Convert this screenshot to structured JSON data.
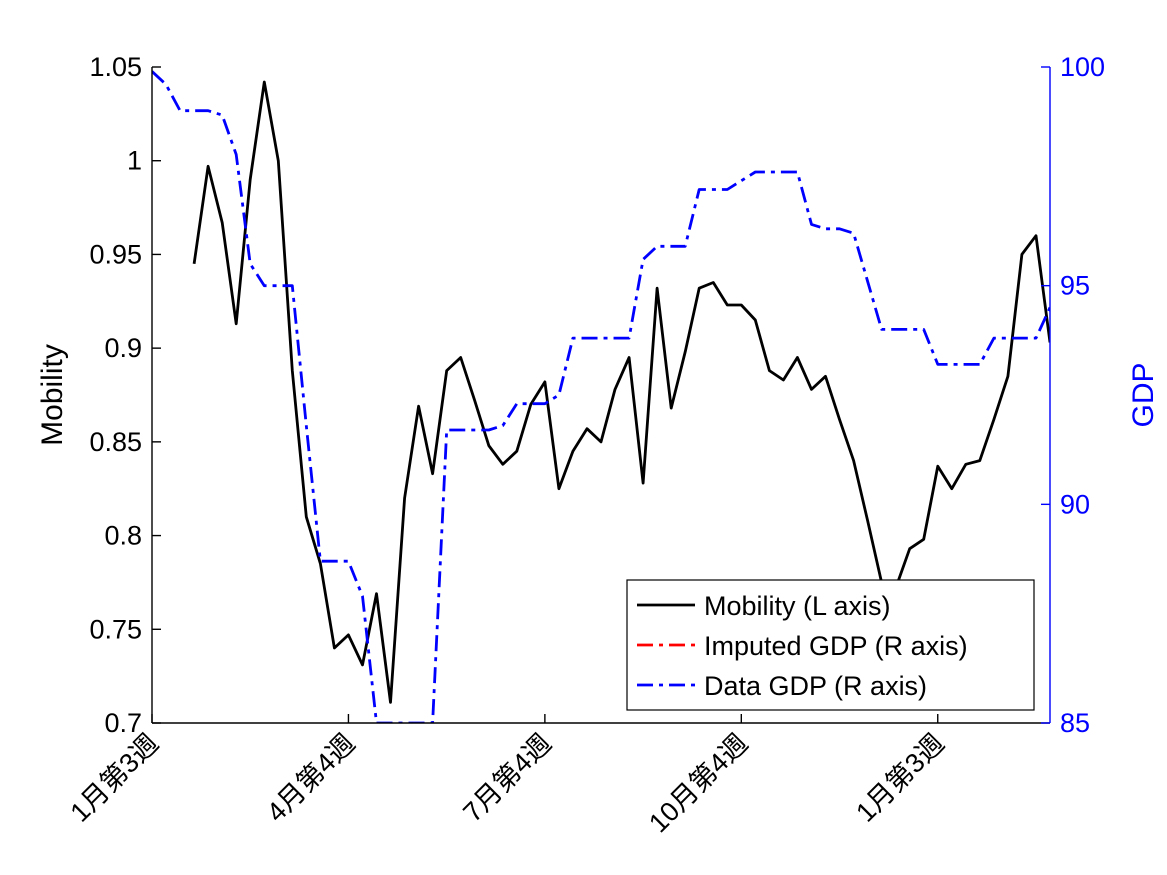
{
  "colors": {
    "mobility": "#000000",
    "imputed_gdp": "#ff0000",
    "data_gdp": "#0000ff",
    "left_axis": "#000000",
    "right_axis": "#0000ff"
  },
  "chart_data": {
    "type": "line",
    "x_tick_labels": [
      "1月第3週",
      "4月第4週",
      "7月第4週",
      "10月第4週",
      "1月第3週"
    ],
    "x_tick_index": [
      0,
      14,
      28,
      42,
      56
    ],
    "xlim": [
      0,
      64
    ],
    "left_axis": {
      "label": "Mobility",
      "ylim": [
        0.7,
        1.05
      ],
      "ticks": [
        0.7,
        0.75,
        0.8,
        0.85,
        0.9,
        0.95,
        1,
        1.05
      ],
      "tick_labels": [
        "0.7",
        "0.75",
        "0.8",
        "0.85",
        "0.9",
        "0.95",
        "1",
        "1.05"
      ]
    },
    "right_axis": {
      "label": "GDP",
      "ylim": [
        85,
        100
      ],
      "ticks": [
        85,
        90,
        95,
        100
      ],
      "tick_labels": [
        "85",
        "90",
        "95",
        "100"
      ]
    },
    "legend": {
      "position": "bottom-right",
      "entries": [
        "Mobility (L axis)",
        "Imputed GDP (R axis)",
        "Data GDP (R axis)"
      ]
    },
    "series": [
      {
        "name": "Mobility (L axis)",
        "axis": "left",
        "style": "solid",
        "x": [
          3,
          4,
          5,
          6,
          7,
          8,
          9,
          10,
          11,
          12,
          13,
          14,
          15,
          16,
          17,
          18,
          19,
          20,
          21,
          22,
          23,
          24,
          25,
          26,
          27,
          28,
          29,
          30,
          31,
          32,
          33,
          34,
          35,
          36,
          37,
          38,
          39,
          40,
          41,
          42,
          43,
          44,
          45,
          46,
          47,
          48,
          49,
          50,
          51,
          52,
          53,
          54,
          55,
          56,
          57,
          58,
          59,
          60,
          61,
          62,
          63,
          64
        ],
        "values": [
          0.945,
          0.997,
          0.967,
          0.913,
          0.99,
          1.042,
          1.0,
          0.888,
          0.81,
          0.785,
          0.74,
          0.747,
          0.731,
          0.769,
          0.711,
          0.82,
          0.869,
          0.833,
          0.888,
          0.895,
          0.872,
          0.848,
          0.838,
          0.845,
          0.87,
          0.882,
          0.825,
          0.845,
          0.857,
          0.85,
          0.878,
          0.895,
          0.828,
          0.932,
          0.868,
          0.898,
          0.932,
          0.935,
          0.923,
          0.923,
          0.915,
          0.888,
          0.883,
          0.895,
          0.878,
          0.885,
          0.862,
          0.84,
          0.808,
          0.775,
          0.772,
          0.793,
          0.798,
          0.837,
          0.825,
          0.838,
          0.84,
          0.862,
          0.885,
          0.95,
          0.96,
          0.903
        ]
      },
      {
        "name": "Imputed GDP (R axis)",
        "axis": "right",
        "style": "dashdot",
        "x": [],
        "values": []
      },
      {
        "name": "Data GDP (R axis)",
        "axis": "right",
        "style": "dashdot",
        "x": [
          0,
          1,
          2,
          3,
          4,
          5,
          6,
          7,
          8,
          9,
          10,
          11,
          12,
          13,
          14,
          15,
          16,
          17,
          18,
          19,
          20,
          21,
          22,
          23,
          24,
          25,
          26,
          27,
          28,
          29,
          30,
          31,
          32,
          33,
          34,
          35,
          36,
          37,
          38,
          39,
          40,
          41,
          42,
          43,
          44,
          45,
          46,
          47,
          48,
          49,
          50,
          51,
          52,
          53,
          54,
          55,
          56,
          57,
          58,
          59,
          60,
          61,
          62,
          63,
          64
        ],
        "values": [
          99.9,
          99.6,
          99.0,
          99.0,
          99.0,
          98.9,
          98.0,
          95.5,
          95.0,
          95.0,
          95.0,
          91.8,
          88.7,
          88.7,
          88.7,
          87.9,
          85.0,
          85.0,
          85.0,
          85.0,
          85.0,
          91.7,
          91.7,
          91.7,
          91.7,
          91.8,
          92.3,
          92.3,
          92.3,
          92.5,
          93.8,
          93.8,
          93.8,
          93.8,
          93.8,
          95.6,
          95.9,
          95.9,
          95.9,
          97.2,
          97.2,
          97.2,
          97.4,
          97.6,
          97.6,
          97.6,
          97.6,
          96.4,
          96.3,
          96.3,
          96.2,
          95.1,
          94.0,
          94.0,
          94.0,
          94.0,
          93.2,
          93.2,
          93.2,
          93.2,
          93.8,
          93.8,
          93.8,
          93.8,
          94.5
        ]
      }
    ]
  }
}
